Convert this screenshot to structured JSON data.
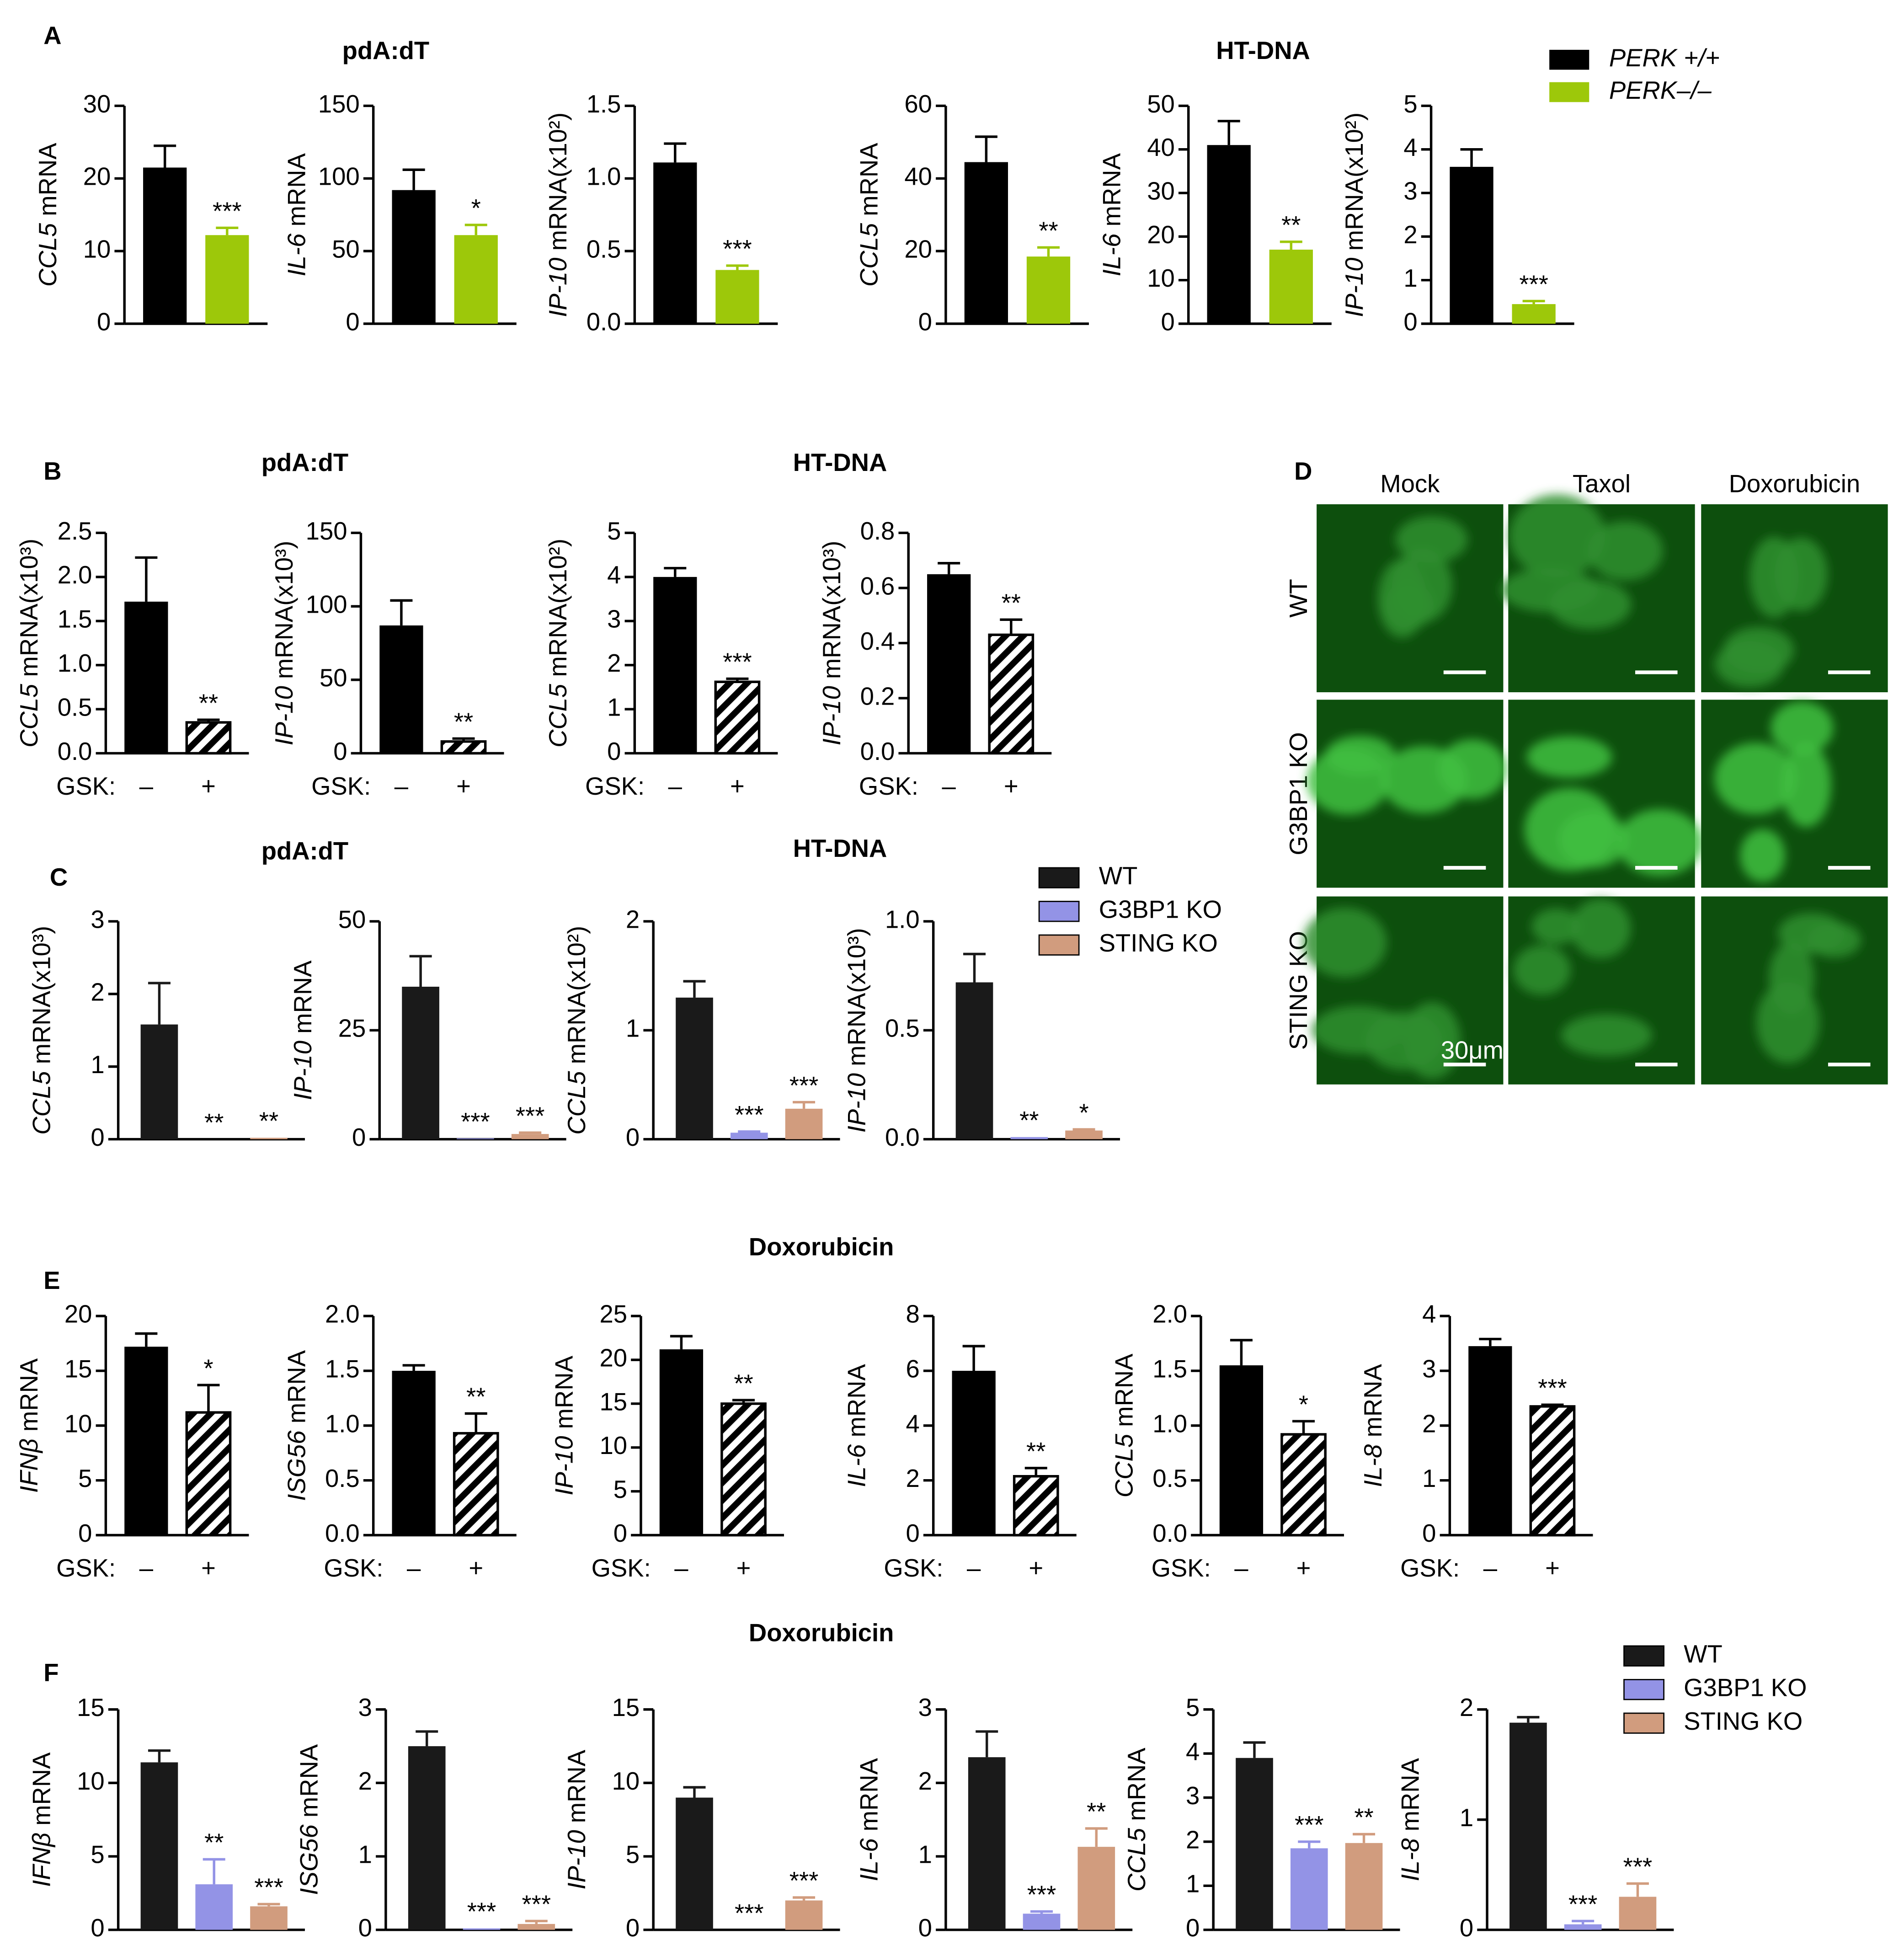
{
  "panel_labels": [
    "A",
    "B",
    "C",
    "D",
    "E",
    "F"
  ],
  "group_titles": [
    "pdA:dT",
    "HT-DNA",
    "pdA:dT",
    "HT-DNA",
    "pdA:dT",
    "HT-DNA",
    "Doxorubicin",
    "Doxorubicin"
  ],
  "legends": [
    {
      "entries": [
        {
          "name": "PERK +/+",
          "color": "#000000"
        },
        {
          "name": "PERK–/–",
          "color": "#9dc80a"
        }
      ]
    },
    {
      "entries": [
        {
          "name": "WT",
          "color": "#1a1a1a"
        },
        {
          "name": "G3BP1 KO",
          "color": "#9393e6"
        },
        {
          "name": "STING KO",
          "color": "#d19c7e"
        }
      ]
    },
    {
      "entries": [
        {
          "name": "WT",
          "color": "#1a1a1a"
        },
        {
          "name": "G3BP1 KO",
          "color": "#9393e6"
        },
        {
          "name": "STING KO",
          "color": "#d19c7e"
        }
      ]
    }
  ],
  "panel_d": {
    "columns": [
      "Mock",
      "Taxol",
      "Doxorubicin"
    ],
    "rows": [
      "WT",
      "G3BP1 KO",
      "STING KO"
    ],
    "scale_bar": "30μm"
  },
  "chart_data": [
    {
      "type": "bar",
      "ylabel": "CCL5 mRNA",
      "ylim": [
        0,
        30
      ],
      "yticks": [
        0,
        10,
        20,
        30
      ],
      "values": [
        21.5,
        12.2
      ],
      "errors": [
        3,
        1
      ],
      "colors": [
        "#000000",
        "#9dc80a"
      ],
      "hatched": [
        false,
        false
      ],
      "annotations": [
        null,
        "***"
      ]
    },
    {
      "type": "bar",
      "ylabel": "IL-6 mRNA",
      "ylim": [
        0,
        150
      ],
      "yticks": [
        0,
        50,
        100,
        150
      ],
      "values": [
        92,
        61
      ],
      "errors": [
        14,
        7
      ],
      "colors": [
        "#000000",
        "#9dc80a"
      ],
      "hatched": [
        false,
        false
      ],
      "annotations": [
        null,
        "*"
      ]
    },
    {
      "type": "bar",
      "ylabel": "IP-10 mRNA(x10²)",
      "ylim": [
        0,
        1.5
      ],
      "yticks": [
        {
          "value": 0,
          "label": "0.0"
        },
        0.5,
        {
          "value": 1,
          "label": "1.0"
        },
        1.5
      ],
      "values": [
        1.11,
        0.37
      ],
      "errors": [
        0.13,
        0.03
      ],
      "colors": [
        "#000000",
        "#9dc80a"
      ],
      "hatched": [
        false,
        false
      ],
      "annotations": [
        null,
        "***"
      ]
    },
    {
      "type": "bar",
      "ylabel": "CCL5 mRNA",
      "ylim": [
        0,
        60
      ],
      "yticks": [
        0,
        20,
        40,
        60
      ],
      "values": [
        44.5,
        18.5
      ],
      "errors": [
        7,
        2.5
      ],
      "colors": [
        "#000000",
        "#9dc80a"
      ],
      "hatched": [
        false,
        false
      ],
      "annotations": [
        null,
        "**"
      ]
    },
    {
      "type": "bar",
      "ylabel": "IL-6 mRNA",
      "ylim": [
        0,
        50
      ],
      "yticks": [
        0,
        10,
        20,
        30,
        40,
        50
      ],
      "values": [
        41,
        17
      ],
      "errors": [
        5.5,
        1.8
      ],
      "colors": [
        "#000000",
        "#9dc80a"
      ],
      "hatched": [
        false,
        false
      ],
      "annotations": [
        null,
        "**"
      ]
    },
    {
      "type": "bar",
      "ylabel": "IP-10 mRNA(x10²)",
      "ylim": [
        0,
        5
      ],
      "yticks": [
        0,
        1,
        2,
        3,
        4,
        5
      ],
      "values": [
        3.6,
        0.45
      ],
      "errors": [
        0.4,
        0.07
      ],
      "colors": [
        "#000000",
        "#9dc80a"
      ],
      "hatched": [
        false,
        false
      ],
      "annotations": [
        null,
        "***"
      ]
    },
    {
      "type": "bar",
      "ylabel": "CCL5 mRNA(x10³)",
      "ylim": [
        0,
        2.5
      ],
      "yticks": [
        {
          "value": 0,
          "label": "0.0"
        },
        0.5,
        {
          "value": 1,
          "label": "1.0"
        },
        1.5,
        {
          "value": 2,
          "label": "2.0"
        },
        2.5
      ],
      "values": [
        1.72,
        0.35
      ],
      "errors": [
        0.5,
        0.03
      ],
      "colors": [
        "#000000",
        "#000000"
      ],
      "hatched": [
        false,
        true
      ],
      "annotations": [
        null,
        "**"
      ],
      "xlabel": "GSK:",
      "categories": [
        "–",
        "+"
      ]
    },
    {
      "type": "bar",
      "ylabel": "IP-10 mRNA(x10³)",
      "ylim": [
        0,
        150
      ],
      "yticks": [
        0,
        50,
        100,
        150
      ],
      "values": [
        87,
        8
      ],
      "errors": [
        17,
        2
      ],
      "colors": [
        "#000000",
        "#000000"
      ],
      "hatched": [
        false,
        true
      ],
      "annotations": [
        null,
        "**"
      ],
      "xlabel": "GSK:",
      "categories": [
        "–",
        "+"
      ]
    },
    {
      "type": "bar",
      "ylabel": "CCL5 mRNA(x10²)",
      "ylim": [
        0,
        5
      ],
      "yticks": [
        0,
        1,
        2,
        3,
        4,
        5
      ],
      "values": [
        4.0,
        1.62
      ],
      "errors": [
        0.2,
        0.07
      ],
      "colors": [
        "#000000",
        "#000000"
      ],
      "hatched": [
        false,
        true
      ],
      "annotations": [
        null,
        "***"
      ],
      "xlabel": "GSK:",
      "categories": [
        "–",
        "+"
      ]
    },
    {
      "type": "bar",
      "ylabel": "IP-10 mRNA(x10³)",
      "ylim": [
        0,
        0.8
      ],
      "yticks": [
        {
          "value": 0,
          "label": "0.0"
        },
        0.2,
        0.4,
        0.6,
        0.8
      ],
      "values": [
        0.65,
        0.43
      ],
      "errors": [
        0.04,
        0.055
      ],
      "colors": [
        "#000000",
        "#000000"
      ],
      "hatched": [
        false,
        true
      ],
      "annotations": [
        null,
        "**"
      ],
      "xlabel": "GSK:",
      "categories": [
        "–",
        "+"
      ]
    },
    {
      "type": "bar",
      "ylabel": "CCL5 mRNA(x10³)",
      "ylim": [
        0,
        3
      ],
      "yticks": [
        0,
        1,
        2,
        3
      ],
      "values": [
        1.58,
        0,
        0.02
      ],
      "errors": [
        0.57,
        null,
        null
      ],
      "colors": [
        "#1a1a1a",
        "#9393e6",
        "#d19c7e"
      ],
      "hatched": [
        false,
        false,
        false
      ],
      "annotations": [
        null,
        "**",
        "**"
      ]
    },
    {
      "type": "bar",
      "ylabel": "IP-10 mRNA",
      "ylim": [
        0,
        50
      ],
      "yticks": [
        0,
        25,
        50
      ],
      "values": [
        35,
        0.2,
        1.2
      ],
      "errors": [
        7,
        null,
        0.3
      ],
      "colors": [
        "#1a1a1a",
        "#9393e6",
        "#d19c7e"
      ],
      "hatched": [
        false,
        false,
        false
      ],
      "annotations": [
        null,
        "***",
        "***"
      ]
    },
    {
      "type": "bar",
      "ylabel": "CCL5 mRNA(x10²)",
      "ylim": [
        0,
        2
      ],
      "yticks": [
        0,
        1,
        2
      ],
      "values": [
        1.3,
        0.06,
        0.28
      ],
      "errors": [
        0.15,
        0.01,
        0.06
      ],
      "colors": [
        "#1a1a1a",
        "#9393e6",
        "#d19c7e"
      ],
      "hatched": [
        false,
        false,
        false
      ],
      "annotations": [
        null,
        "***",
        "***"
      ]
    },
    {
      "type": "bar",
      "ylabel": "IP-10 mRNA(x10³)",
      "ylim": [
        0,
        1
      ],
      "yticks": [
        {
          "value": 0,
          "label": "0.0"
        },
        0.5,
        {
          "value": 1,
          "label": "1.0"
        }
      ],
      "values": [
        0.72,
        0.01,
        0.04
      ],
      "errors": [
        0.13,
        null,
        0.005
      ],
      "colors": [
        "#1a1a1a",
        "#9393e6",
        "#d19c7e"
      ],
      "hatched": [
        false,
        false,
        false
      ],
      "annotations": [
        null,
        "**",
        "*"
      ]
    },
    {
      "type": "bar",
      "ylabel": "IFNβ mRNA",
      "ylim": [
        0,
        20
      ],
      "yticks": [
        0,
        5,
        10,
        15,
        20
      ],
      "values": [
        17.2,
        11.2
      ],
      "errors": [
        1.2,
        2.5
      ],
      "colors": [
        "#000000",
        "#000000"
      ],
      "hatched": [
        false,
        true
      ],
      "annotations": [
        null,
        "*"
      ],
      "xlabel": "GSK:",
      "categories": [
        "–",
        "+"
      ]
    },
    {
      "type": "bar",
      "ylabel": "ISG56 mRNA",
      "ylim": [
        0,
        2
      ],
      "yticks": [
        {
          "value": 0,
          "label": "0.0"
        },
        0.5,
        {
          "value": 1,
          "label": "1.0"
        },
        1.5,
        {
          "value": 2,
          "label": "2.0"
        }
      ],
      "values": [
        1.5,
        0.93
      ],
      "errors": [
        0.05,
        0.18
      ],
      "colors": [
        "#000000",
        "#000000"
      ],
      "hatched": [
        false,
        true
      ],
      "annotations": [
        null,
        "**"
      ],
      "xlabel": "GSK:",
      "categories": [
        "–",
        "+"
      ]
    },
    {
      "type": "bar",
      "ylabel": "IP-10 mRNA",
      "ylim": [
        0,
        25
      ],
      "yticks": [
        0,
        5,
        10,
        15,
        20,
        25
      ],
      "values": [
        21.2,
        15
      ],
      "errors": [
        1.5,
        0.4
      ],
      "colors": [
        "#000000",
        "#000000"
      ],
      "hatched": [
        false,
        true
      ],
      "annotations": [
        null,
        "**"
      ],
      "xlabel": "GSK:",
      "categories": [
        "–",
        "+"
      ]
    },
    {
      "type": "bar",
      "ylabel": "IL-6 mRNA",
      "ylim": [
        0,
        8
      ],
      "yticks": [
        0,
        2,
        4,
        6,
        8
      ],
      "values": [
        6,
        2.15
      ],
      "errors": [
        0.9,
        0.3
      ],
      "colors": [
        "#000000",
        "#000000"
      ],
      "hatched": [
        false,
        true
      ],
      "annotations": [
        null,
        "**"
      ],
      "xlabel": "GSK:",
      "categories": [
        "–",
        "+"
      ]
    },
    {
      "type": "bar",
      "ylabel": "CCL5 mRNA",
      "ylim": [
        0,
        2
      ],
      "yticks": [
        {
          "value": 0,
          "label": "0.0"
        },
        0.5,
        {
          "value": 1,
          "label": "1.0"
        },
        1.5,
        {
          "value": 2,
          "label": "2.0"
        }
      ],
      "values": [
        1.55,
        0.92
      ],
      "errors": [
        0.23,
        0.12
      ],
      "colors": [
        "#000000",
        "#000000"
      ],
      "hatched": [
        false,
        true
      ],
      "annotations": [
        null,
        "*"
      ],
      "xlabel": "GSK:",
      "categories": [
        "–",
        "+"
      ]
    },
    {
      "type": "bar",
      "ylabel": "IL-8 mRNA",
      "ylim": [
        0,
        4
      ],
      "yticks": [
        0,
        1,
        2,
        3,
        4
      ],
      "values": [
        3.45,
        2.35
      ],
      "errors": [
        0.13,
        0.03
      ],
      "colors": [
        "#000000",
        "#000000"
      ],
      "hatched": [
        false,
        true
      ],
      "annotations": [
        null,
        "***"
      ],
      "xlabel": "GSK:",
      "categories": [
        "–",
        "+"
      ]
    },
    {
      "type": "bar",
      "ylabel": "IFNβ mRNA",
      "ylim": [
        0,
        15
      ],
      "yticks": [
        0,
        5,
        10,
        15
      ],
      "values": [
        11.4,
        3.1,
        1.6
      ],
      "errors": [
        0.8,
        1.7,
        0.15
      ],
      "colors": [
        "#1a1a1a",
        "#9393e6",
        "#d19c7e"
      ],
      "hatched": [
        false,
        false,
        false
      ],
      "annotations": [
        null,
        "**",
        "***"
      ]
    },
    {
      "type": "bar",
      "ylabel": "ISG56 mRNA",
      "ylim": [
        0,
        3
      ],
      "yticks": [
        0,
        1,
        2,
        3
      ],
      "values": [
        2.5,
        0.02,
        0.08
      ],
      "errors": [
        0.2,
        null,
        0.04
      ],
      "colors": [
        "#1a1a1a",
        "#9393e6",
        "#d19c7e"
      ],
      "hatched": [
        false,
        false,
        false
      ],
      "annotations": [
        null,
        "***",
        "***"
      ]
    },
    {
      "type": "bar",
      "ylabel": "IP-10 mRNA",
      "ylim": [
        0,
        15
      ],
      "yticks": [
        0,
        5,
        10,
        15
      ],
      "values": [
        9,
        0,
        2
      ],
      "errors": [
        0.7,
        null,
        0.2
      ],
      "colors": [
        "#1a1a1a",
        "#9393e6",
        "#d19c7e"
      ],
      "hatched": [
        false,
        false,
        false
      ],
      "annotations": [
        null,
        "***",
        "***"
      ]
    },
    {
      "type": "bar",
      "ylabel": "IL-6 mRNA",
      "ylim": [
        0,
        3
      ],
      "yticks": [
        0,
        1,
        2,
        3
      ],
      "values": [
        2.35,
        0.22,
        1.13
      ],
      "errors": [
        0.35,
        0.03,
        0.25
      ],
      "colors": [
        "#1a1a1a",
        "#9393e6",
        "#d19c7e"
      ],
      "hatched": [
        false,
        false,
        false
      ],
      "annotations": [
        null,
        "***",
        "**"
      ]
    },
    {
      "type": "bar",
      "ylabel": "CCL5 mRNA",
      "ylim": [
        0,
        5
      ],
      "yticks": [
        0,
        1,
        2,
        3,
        4,
        5
      ],
      "values": [
        3.9,
        1.85,
        1.97
      ],
      "errors": [
        0.35,
        0.15,
        0.2
      ],
      "colors": [
        "#1a1a1a",
        "#9393e6",
        "#d19c7e"
      ],
      "hatched": [
        false,
        false,
        false
      ],
      "annotations": [
        null,
        "***",
        "**"
      ]
    },
    {
      "type": "bar",
      "ylabel": "IL-8 mRNA",
      "ylim": [
        0,
        2
      ],
      "yticks": [
        0,
        1,
        2
      ],
      "values": [
        1.88,
        0.05,
        0.3
      ],
      "errors": [
        0.05,
        0.03,
        0.12
      ],
      "colors": [
        "#1a1a1a",
        "#9393e6",
        "#d19c7e"
      ],
      "hatched": [
        false,
        false,
        false
      ],
      "annotations": [
        null,
        "***",
        "***"
      ]
    }
  ]
}
